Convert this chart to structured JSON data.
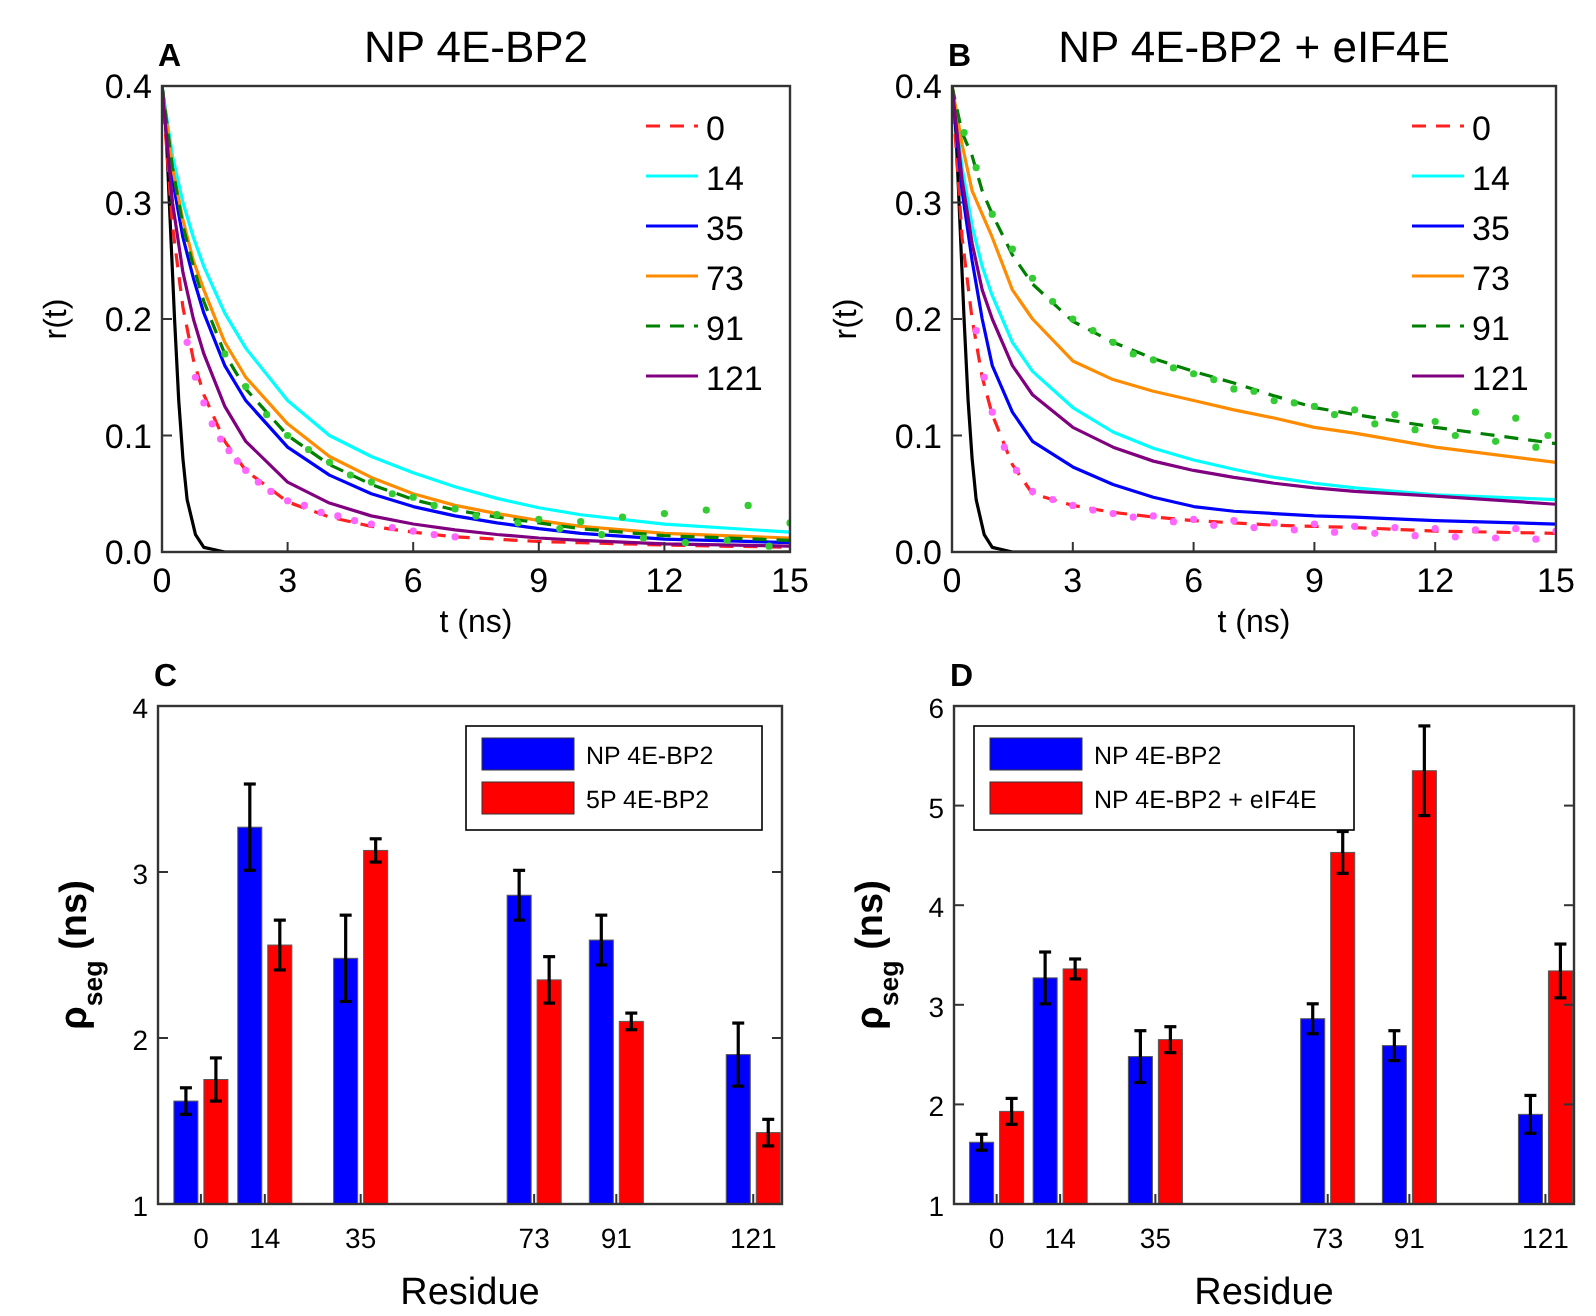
{
  "chart_data": [
    {
      "type": "line",
      "title": "NP 4E-BP2",
      "annotations": [
        "A"
      ],
      "xlabel": "t (ns)",
      "ylabel": "r(t)",
      "xlim": [
        0,
        15
      ],
      "xticks": [
        0,
        3,
        6,
        9,
        12,
        15
      ],
      "ylim": [
        0,
        0.4
      ],
      "yticks": [
        {
          "value": 0,
          "label": "0.0"
        },
        {
          "value": 0.1,
          "label": "0.1"
        },
        {
          "value": 0.2,
          "label": "0.2"
        },
        {
          "value": 0.3,
          "label": "0.3"
        },
        {
          "value": 0.4,
          "label": "0.4"
        }
      ],
      "legend": "top right",
      "x": [
        0,
        0.25,
        0.5,
        0.75,
        1,
        1.5,
        2,
        3,
        4,
        5,
        6,
        7,
        8,
        9,
        10,
        12,
        15
      ],
      "series": [
        {
          "type": "scatter",
          "color": "#ff66ff",
          "x": [
            0.6,
            0.8,
            1,
            1.2,
            1.4,
            1.6,
            1.8,
            2,
            2.3,
            2.6,
            3,
            3.4,
            3.8,
            4.2,
            4.6,
            5,
            5.5,
            6,
            6.5,
            7
          ],
          "values": [
            0.18,
            0.15,
            0.128,
            0.11,
            0.097,
            0.087,
            0.078,
            0.07,
            0.06,
            0.052,
            0.044,
            0.04,
            0.034,
            0.031,
            0.027,
            0.024,
            0.021,
            0.018,
            0.015,
            0.013
          ]
        },
        {
          "type": "scatter",
          "color": "#33cc33",
          "x": [
            1.5,
            2,
            2.5,
            3,
            3.5,
            4,
            4.5,
            5,
            5.5,
            6,
            6.5,
            7,
            7.5,
            8,
            8.5,
            9,
            9.5,
            10,
            10.5,
            11,
            11.5,
            12,
            12.5,
            13,
            13.5,
            14,
            14.5,
            15
          ],
          "values": [
            0.17,
            0.142,
            0.118,
            0.1,
            0.088,
            0.077,
            0.066,
            0.06,
            0.05,
            0.047,
            0.04,
            0.037,
            0.031,
            0.032,
            0.025,
            0.028,
            0.02,
            0.026,
            0.015,
            0.03,
            0.012,
            0.033,
            0.008,
            0.036,
            0.01,
            0.04,
            0.005,
            0.025
          ]
        },
        {
          "type": "line",
          "x": [
            0,
            0.1,
            0.2,
            0.3,
            0.4,
            0.5,
            0.6,
            0.8,
            1,
            1.5,
            15
          ],
          "color": "#000000",
          "values": [
            0.4,
            0.36,
            0.28,
            0.2,
            0.13,
            0.08,
            0.045,
            0.015,
            0.004,
            0,
            0
          ]
        },
        {
          "name": "0",
          "color": "#ff2020",
          "line_style": "dashed",
          "values": [
            0.4,
            0.28,
            0.21,
            0.165,
            0.135,
            0.095,
            0.07,
            0.043,
            0.03,
            0.022,
            0.017,
            0.013,
            0.011,
            0.009,
            0.008,
            0.006,
            0.004
          ]
        },
        {
          "name": "14",
          "color": "#00ffff",
          "values": [
            0.4,
            0.34,
            0.3,
            0.27,
            0.245,
            0.205,
            0.175,
            0.13,
            0.1,
            0.082,
            0.068,
            0.056,
            0.046,
            0.038,
            0.032,
            0.024,
            0.017
          ]
        },
        {
          "name": "35",
          "color": "#0000ff",
          "values": [
            0.4,
            0.32,
            0.27,
            0.235,
            0.205,
            0.16,
            0.13,
            0.09,
            0.066,
            0.05,
            0.039,
            0.031,
            0.025,
            0.02,
            0.016,
            0.011,
            0.008
          ]
        },
        {
          "name": "73",
          "color": "#ff8c00",
          "values": [
            0.4,
            0.33,
            0.285,
            0.25,
            0.225,
            0.18,
            0.15,
            0.11,
            0.082,
            0.064,
            0.05,
            0.04,
            0.033,
            0.027,
            0.022,
            0.016,
            0.012
          ]
        },
        {
          "name": "91",
          "color": "#008000",
          "line_style": "dashed",
          "values": [
            0.4,
            0.33,
            0.28,
            0.245,
            0.215,
            0.17,
            0.14,
            0.1,
            0.075,
            0.058,
            0.045,
            0.036,
            0.03,
            0.025,
            0.02,
            0.014,
            0.01
          ]
        },
        {
          "name": "121",
          "color": "#800080",
          "values": [
            0.4,
            0.3,
            0.24,
            0.2,
            0.17,
            0.125,
            0.095,
            0.06,
            0.042,
            0.031,
            0.024,
            0.019,
            0.015,
            0.012,
            0.01,
            0.007,
            0.005
          ]
        }
      ]
    },
    {
      "type": "line",
      "title": "NP 4E-BP2 + eIF4E",
      "annotations": [
        "B"
      ],
      "xlabel": "t (ns)",
      "ylabel": "r(t)",
      "xlim": [
        0,
        15
      ],
      "xticks": [
        0,
        3,
        6,
        9,
        12,
        15
      ],
      "ylim": [
        0,
        0.4
      ],
      "yticks": [
        {
          "value": 0,
          "label": "0.0"
        },
        {
          "value": 0.1,
          "label": "0.1"
        },
        {
          "value": 0.2,
          "label": "0.2"
        },
        {
          "value": 0.3,
          "label": "0.3"
        },
        {
          "value": 0.4,
          "label": "0.4"
        }
      ],
      "legend": "top right",
      "x": [
        0,
        0.25,
        0.5,
        0.75,
        1,
        1.5,
        2,
        3,
        4,
        5,
        6,
        7,
        8,
        9,
        10,
        12,
        15
      ],
      "series": [
        {
          "type": "scatter",
          "color": "#ff66ff",
          "x": [
            0.6,
            0.8,
            1,
            1.3,
            1.6,
            2,
            2.5,
            3,
            3.5,
            4,
            4.5,
            5,
            5.5,
            6,
            6.5,
            7,
            7.5,
            8,
            8.5,
            9,
            9.5,
            10,
            10.5,
            11,
            11.5,
            12,
            12.5,
            13,
            13.5,
            14,
            14.5,
            15
          ],
          "values": [
            0.19,
            0.15,
            0.12,
            0.09,
            0.07,
            0.052,
            0.045,
            0.04,
            0.036,
            0.033,
            0.03,
            0.031,
            0.026,
            0.028,
            0.023,
            0.027,
            0.021,
            0.025,
            0.019,
            0.024,
            0.017,
            0.022,
            0.016,
            0.021,
            0.014,
            0.02,
            0.013,
            0.019,
            0.012,
            0.02,
            0.011,
            0.018
          ]
        },
        {
          "type": "scatter",
          "color": "#33cc33",
          "x": [
            0.3,
            0.6,
            1,
            1.5,
            2,
            2.5,
            3,
            3.5,
            4,
            4.5,
            5,
            5.5,
            6,
            6.5,
            7,
            7.5,
            8,
            8.5,
            9,
            9.5,
            10,
            10.5,
            11,
            11.5,
            12,
            12.5,
            13,
            13.5,
            14,
            14.5,
            14.8
          ],
          "values": [
            0.36,
            0.33,
            0.29,
            0.26,
            0.235,
            0.215,
            0.2,
            0.19,
            0.18,
            0.17,
            0.165,
            0.158,
            0.153,
            0.148,
            0.14,
            0.138,
            0.13,
            0.128,
            0.125,
            0.118,
            0.122,
            0.11,
            0.118,
            0.105,
            0.112,
            0.1,
            0.12,
            0.095,
            0.115,
            0.09,
            0.1
          ]
        },
        {
          "type": "line",
          "x": [
            0,
            0.1,
            0.2,
            0.3,
            0.4,
            0.5,
            0.6,
            0.8,
            1,
            1.5,
            15
          ],
          "color": "#000000",
          "values": [
            0.4,
            0.36,
            0.28,
            0.2,
            0.13,
            0.08,
            0.045,
            0.015,
            0.004,
            0,
            0
          ]
        },
        {
          "name": "0",
          "color": "#ff2020",
          "line_style": "dashed",
          "values": [
            0.4,
            0.27,
            0.2,
            0.15,
            0.118,
            0.075,
            0.05,
            0.04,
            0.034,
            0.03,
            0.027,
            0.025,
            0.023,
            0.022,
            0.021,
            0.018,
            0.016
          ]
        },
        {
          "name": "14",
          "color": "#00ffff",
          "values": [
            0.4,
            0.33,
            0.28,
            0.245,
            0.22,
            0.18,
            0.155,
            0.124,
            0.103,
            0.089,
            0.079,
            0.071,
            0.064,
            0.059,
            0.055,
            0.049,
            0.045
          ]
        },
        {
          "name": "35",
          "color": "#0000ff",
          "values": [
            0.4,
            0.31,
            0.25,
            0.2,
            0.16,
            0.12,
            0.095,
            0.073,
            0.058,
            0.047,
            0.039,
            0.035,
            0.033,
            0.031,
            0.03,
            0.027,
            0.024
          ]
        },
        {
          "name": "73",
          "color": "#ff8c00",
          "values": [
            0.4,
            0.35,
            0.31,
            0.29,
            0.27,
            0.225,
            0.2,
            0.164,
            0.148,
            0.138,
            0.13,
            0.122,
            0.115,
            0.107,
            0.102,
            0.09,
            0.077
          ]
        },
        {
          "name": "91",
          "color": "#008000",
          "line_style": "dashed",
          "values": [
            0.4,
            0.36,
            0.34,
            0.31,
            0.29,
            0.255,
            0.23,
            0.198,
            0.18,
            0.166,
            0.155,
            0.145,
            0.134,
            0.124,
            0.118,
            0.107,
            0.093
          ]
        },
        {
          "name": "121",
          "color": "#800080",
          "values": [
            0.4,
            0.32,
            0.265,
            0.225,
            0.2,
            0.16,
            0.135,
            0.107,
            0.09,
            0.078,
            0.07,
            0.064,
            0.059,
            0.055,
            0.052,
            0.048,
            0.041
          ]
        }
      ]
    },
    {
      "type": "bar",
      "annotations": [
        "C"
      ],
      "xlabel": "Residue",
      "ylabel": "ρ$_{seg}$ (ns)",
      "x": [
        0,
        14,
        35,
        73,
        91,
        121
      ],
      "xlim": [
        -9.4,
        127.3
      ],
      "xticks": [
        0,
        14,
        35,
        73,
        91,
        121
      ],
      "ylim": [
        1,
        4
      ],
      "yticks": [
        1,
        2,
        3,
        4
      ],
      "legend": "top right",
      "series": [
        {
          "name": "NP 4E-BP2",
          "color": "#0000ff",
          "values": [
            1.62,
            3.27,
            2.48,
            2.86,
            2.59,
            1.9
          ],
          "errors": [
            0.08,
            0.26,
            0.26,
            0.15,
            0.15,
            0.19
          ]
        },
        {
          "name": "5P 4E-BP2",
          "color": "#ff0000",
          "values": [
            1.75,
            2.56,
            3.13,
            2.35,
            2.1,
            1.43
          ],
          "errors": [
            0.13,
            0.15,
            0.07,
            0.14,
            0.05,
            0.08
          ]
        }
      ]
    },
    {
      "type": "bar",
      "annotations": [
        "D"
      ],
      "xlabel": "Residue",
      "ylabel": "ρ$_{seg}$ (ns)",
      "x": [
        0,
        14,
        35,
        73,
        91,
        121
      ],
      "xlim": [
        -9.4,
        127.3
      ],
      "xticks": [
        0,
        14,
        35,
        73,
        91,
        121
      ],
      "ylim": [
        1,
        6
      ],
      "yticks": [
        1,
        2,
        3,
        4,
        5,
        6
      ],
      "legend": "top left",
      "series": [
        {
          "name": "NP 4E-BP2",
          "color": "#0000ff",
          "values": [
            1.62,
            3.27,
            2.48,
            2.86,
            2.59,
            1.9
          ],
          "errors": [
            0.08,
            0.26,
            0.26,
            0.15,
            0.15,
            0.19
          ]
        },
        {
          "name": "NP 4E-BP2 + eIF4E",
          "color": "#ff0000",
          "values": [
            1.93,
            3.36,
            2.65,
            4.53,
            5.35,
            3.34
          ],
          "errors": [
            0.13,
            0.1,
            0.13,
            0.21,
            0.45,
            0.27
          ]
        }
      ]
    }
  ]
}
